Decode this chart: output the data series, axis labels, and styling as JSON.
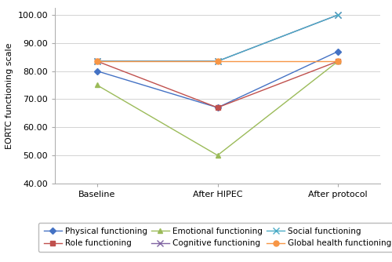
{
  "x_labels": [
    "Baseline",
    "After HIPEC",
    "After protocol"
  ],
  "series": [
    {
      "name": "Physical functioning",
      "values": [
        80.0,
        67.0,
        87.0
      ],
      "color": "#4472C4",
      "marker": "D",
      "markersize": 4,
      "linestyle": "-"
    },
    {
      "name": "Role functioning",
      "values": [
        83.5,
        67.0,
        83.5
      ],
      "color": "#C0504D",
      "marker": "s",
      "markersize": 4,
      "linestyle": "-"
    },
    {
      "name": "Emotional functioning",
      "values": [
        75.0,
        50.0,
        83.5
      ],
      "color": "#9BBB59",
      "marker": "^",
      "markersize": 4,
      "linestyle": "-"
    },
    {
      "name": "Cognitive functioning",
      "values": [
        83.5,
        83.5,
        100.0
      ],
      "color": "#8064A2",
      "marker": "x",
      "markersize": 6,
      "linestyle": "-"
    },
    {
      "name": "Social functioning",
      "values": [
        83.5,
        83.5,
        100.0
      ],
      "color": "#4BACC6",
      "marker": "x",
      "markersize": 6,
      "linestyle": "-"
    },
    {
      "name": "Global health functioning",
      "values": [
        83.5,
        83.5,
        83.5
      ],
      "color": "#F79646",
      "marker": "o",
      "markersize": 5,
      "linestyle": "-"
    }
  ],
  "ylabel": "EORTC functioning scale",
  "ylim": [
    40.0,
    102.5
  ],
  "yticks": [
    40.0,
    50.0,
    60.0,
    70.0,
    80.0,
    90.0,
    100.0
  ],
  "background_color": "#ffffff",
  "grid_color": "#cccccc",
  "axis_fontsize": 8,
  "legend_fontsize": 7.5
}
